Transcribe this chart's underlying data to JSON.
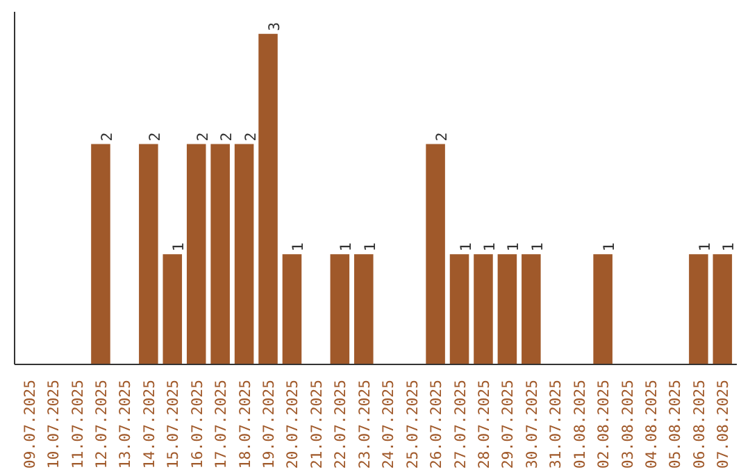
{
  "chart_data": {
    "type": "bar",
    "categories": [
      "09.07.2025",
      "10.07.2025",
      "11.07.2025",
      "12.07.2025",
      "13.07.2025",
      "14.07.2025",
      "15.07.2025",
      "16.07.2025",
      "17.07.2025",
      "18.07.2025",
      "19.07.2025",
      "20.07.2025",
      "21.07.2025",
      "22.07.2025",
      "23.07.2025",
      "24.07.2025",
      "25.07.2025",
      "26.07.2025",
      "27.07.2025",
      "28.07.2025",
      "29.07.2025",
      "30.07.2025",
      "31.07.2025",
      "01.08.2025",
      "02.08.2025",
      "03.08.2025",
      "04.08.2025",
      "05.08.2025",
      "06.08.2025",
      "07.08.2025"
    ],
    "values": [
      0,
      0,
      0,
      2,
      0,
      2,
      1,
      2,
      2,
      2,
      3,
      1,
      0,
      1,
      1,
      0,
      0,
      2,
      1,
      1,
      1,
      1,
      0,
      0,
      1,
      0,
      0,
      0,
      1,
      1
    ],
    "value_labels": [
      null,
      null,
      null,
      "2",
      null,
      "2",
      "1",
      "2",
      "2",
      "2",
      "3",
      "1",
      null,
      "1",
      "1",
      null,
      null,
      "2",
      "1",
      "1",
      "1",
      "1",
      null,
      null,
      "1",
      null,
      null,
      null,
      "1",
      "1"
    ],
    "color": "#a0592a",
    "ylim": [
      0,
      3.2
    ],
    "tick_labels": "x",
    "grid": false
  }
}
